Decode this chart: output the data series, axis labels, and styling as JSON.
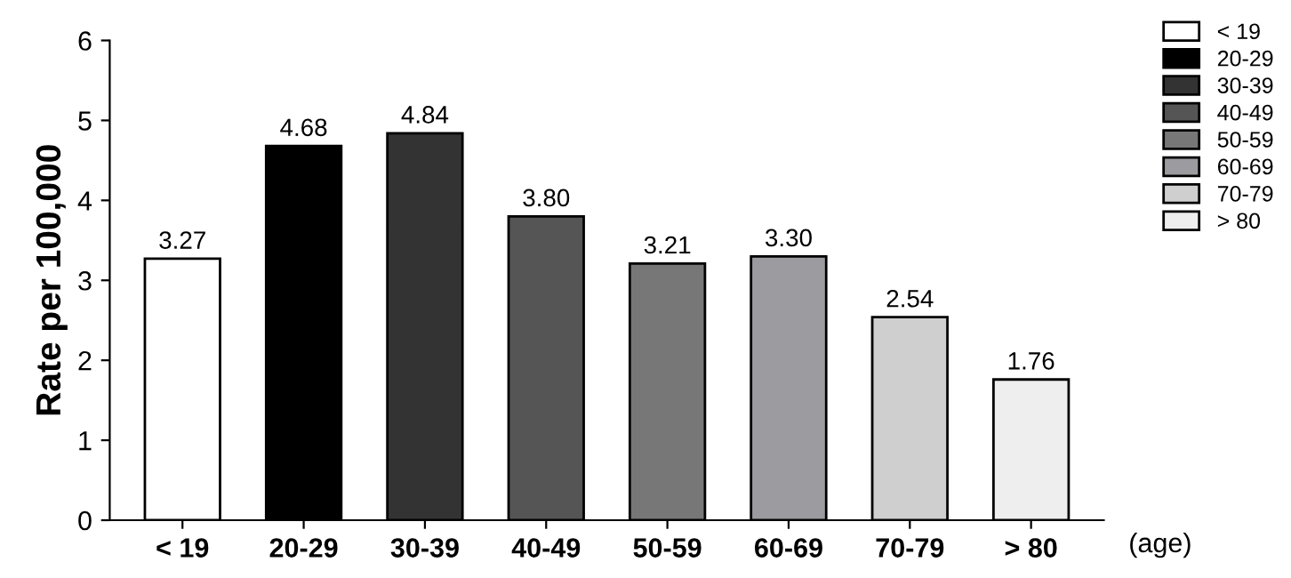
{
  "chart_data": {
    "type": "bar",
    "ylabel": "Rate per 100,000",
    "xlabel": "(age)",
    "categories": [
      "< 19",
      "20-29",
      "30-39",
      "40-49",
      "50-59",
      "60-69",
      "70-79",
      "> 80"
    ],
    "series": [
      {
        "name": "< 19",
        "color": "#ffffff",
        "values": [
          3.27,
          null,
          null,
          null,
          null,
          null,
          null,
          null
        ],
        "value_labels": [
          "3.27",
          null,
          null,
          null,
          null,
          null,
          null,
          null
        ]
      },
      {
        "name": "20-29",
        "color": "#000000",
        "values": [
          null,
          4.68,
          null,
          null,
          null,
          null,
          null,
          null
        ],
        "value_labels": [
          null,
          "4.68",
          null,
          null,
          null,
          null,
          null,
          null
        ]
      },
      {
        "name": "30-39",
        "color": "#333333",
        "values": [
          null,
          null,
          4.84,
          null,
          null,
          null,
          null,
          null
        ],
        "value_labels": [
          null,
          null,
          "4.84",
          null,
          null,
          null,
          null,
          null
        ]
      },
      {
        "name": "40-49",
        "color": "#555555",
        "values": [
          null,
          null,
          null,
          3.8,
          null,
          null,
          null,
          null
        ],
        "value_labels": [
          null,
          null,
          null,
          "3.80",
          null,
          null,
          null,
          null
        ]
      },
      {
        "name": "50-59",
        "color": "#777777",
        "values": [
          null,
          null,
          null,
          null,
          3.21,
          null,
          null,
          null
        ],
        "value_labels": [
          null,
          null,
          null,
          null,
          "3.21",
          null,
          null,
          null
        ]
      },
      {
        "name": "60-69",
        "color": "#9c9ca0",
        "values": [
          null,
          null,
          null,
          null,
          null,
          3.3,
          null,
          null
        ],
        "value_labels": [
          null,
          null,
          null,
          null,
          null,
          "3.30",
          null,
          null
        ]
      },
      {
        "name": "70-79",
        "color": "#cfcfcf",
        "values": [
          null,
          null,
          null,
          null,
          null,
          null,
          2.54,
          null
        ],
        "value_labels": [
          null,
          null,
          null,
          null,
          null,
          null,
          "2.54",
          null
        ]
      },
      {
        "name": "> 80",
        "color": "#eeeeee",
        "values": [
          null,
          null,
          null,
          null,
          null,
          null,
          null,
          1.76
        ],
        "value_labels": [
          null,
          null,
          null,
          null,
          null,
          null,
          null,
          "1.76"
        ]
      }
    ],
    "ylim": [
      0,
      6
    ],
    "yticks": [
      0,
      1,
      2,
      3,
      4,
      5,
      6
    ],
    "legend": "top right"
  }
}
